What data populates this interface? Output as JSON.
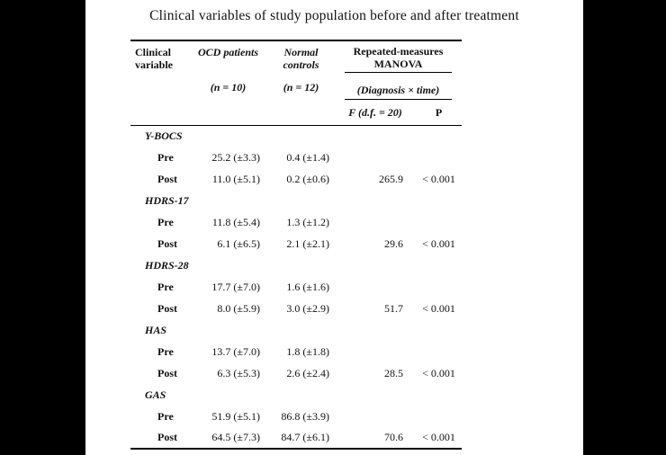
{
  "page": {
    "title": "Clinical variables of study population before and after treatment"
  },
  "colors": {
    "background": "#000000",
    "sheet": "#ffffff",
    "text": "#111111",
    "rule": "#000000"
  },
  "table": {
    "header": {
      "clinical_variable": "Clinical variable",
      "ocd_patients": "OCD patients",
      "ocd_n": "(n = 10)",
      "normal_controls": "Normal controls",
      "normal_n": "(n = 12)",
      "manova": "Repeated-measures MANOVA",
      "manova_factor": "(Diagnosis × time)",
      "f_label": "F (d.f. = 20)",
      "p_label": "P"
    },
    "groups": [
      {
        "name": "Y-BOCS",
        "rows": [
          {
            "label": "Pre",
            "ocd": "25.2 (±3.3)",
            "normal": "0.4 (±1.4)",
            "f": "",
            "p": ""
          },
          {
            "label": "Post",
            "ocd": "11.0 (±5.1)",
            "normal": "0.2 (±0.6)",
            "f": "265.9",
            "p": "< 0.001"
          }
        ]
      },
      {
        "name": "HDRS-17",
        "rows": [
          {
            "label": "Pre",
            "ocd": "11.8 (±5.4)",
            "normal": "1.3 (±1.2)",
            "f": "",
            "p": ""
          },
          {
            "label": "Post",
            "ocd": "6.1 (±6.5)",
            "normal": "2.1 (±2.1)",
            "f": "29.6",
            "p": "< 0.001"
          }
        ]
      },
      {
        "name": "HDRS-28",
        "rows": [
          {
            "label": "Pre",
            "ocd": "17.7 (±7.0)",
            "normal": "1.6 (±1.6)",
            "f": "",
            "p": ""
          },
          {
            "label": "Post",
            "ocd": "8.0 (±5.9)",
            "normal": "3.0 (±2.9)",
            "f": "51.7",
            "p": "< 0.001"
          }
        ]
      },
      {
        "name": "HAS",
        "rows": [
          {
            "label": "Pre",
            "ocd": "13.7 (±7.0)",
            "normal": "1.8 (±1.8)",
            "f": "",
            "p": ""
          },
          {
            "label": "Post",
            "ocd": "6.3 (±5.3)",
            "normal": "2.6 (±2.4)",
            "f": "28.5",
            "p": "< 0.001"
          }
        ]
      },
      {
        "name": "GAS",
        "rows": [
          {
            "label": "Pre",
            "ocd": "51.9 (±5.1)",
            "normal": "86.8 (±3.9)",
            "f": "",
            "p": ""
          },
          {
            "label": "Post",
            "ocd": "64.5 (±7.3)",
            "normal": "84.7 (±6.1)",
            "f": "70.6",
            "p": "< 0.001"
          }
        ]
      }
    ]
  }
}
